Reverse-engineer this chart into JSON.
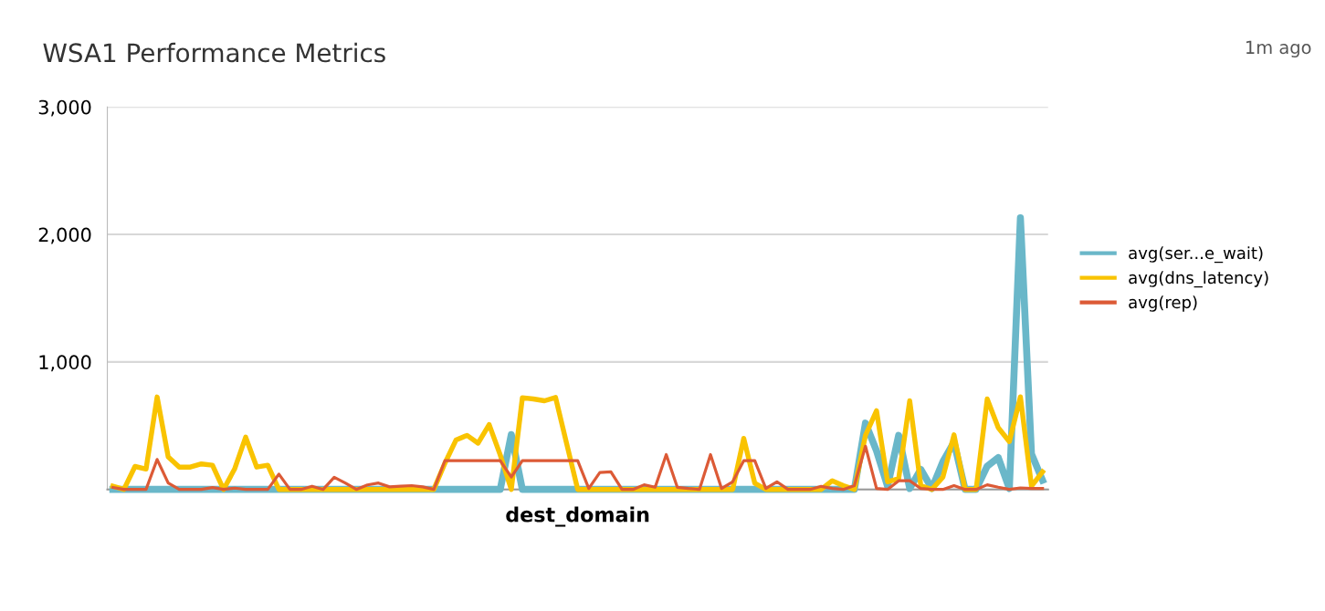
{
  "chart_data": {
    "type": "line",
    "title": "WSA1 Performance Metrics",
    "xlabel": "dest_domain",
    "annotations": [
      "1m ago"
    ],
    "categories": [
      null,
      null,
      null,
      null,
      null,
      null,
      null,
      null,
      null,
      null,
      null,
      null,
      null,
      null,
      null,
      null,
      null,
      null,
      null,
      null,
      null,
      null,
      null,
      null,
      null,
      null,
      null,
      null,
      null,
      null,
      null,
      null,
      null,
      null,
      null,
      null,
      null,
      null,
      null,
      null,
      null,
      null,
      null,
      null,
      null,
      null,
      null,
      null,
      null,
      null,
      null,
      null,
      null,
      null,
      null,
      null,
      null,
      null,
      null,
      null,
      null,
      null,
      null,
      null,
      null,
      null,
      null,
      null,
      null,
      null,
      null,
      null,
      null,
      null,
      null,
      null,
      null,
      null,
      null,
      null,
      null,
      null,
      null,
      null,
      null
    ],
    "series": [
      {
        "name": "avg(ser...e_wait)",
        "color": "#6ab7c9",
        "values": [
          0,
          0,
          0,
          0,
          0,
          0,
          0,
          0,
          0,
          0,
          0,
          0,
          0,
          0,
          0,
          0,
          0,
          0,
          0,
          0,
          0,
          0,
          0,
          0,
          0,
          0,
          0,
          0,
          0,
          0,
          0,
          0,
          0,
          0,
          0,
          0,
          430,
          0,
          0,
          0,
          0,
          0,
          0,
          0,
          0,
          0,
          0,
          0,
          0,
          0,
          0,
          0,
          0,
          0,
          0,
          0,
          0,
          0,
          0,
          0,
          0,
          0,
          0,
          0,
          0,
          0,
          0,
          0,
          520,
          303,
          24,
          424,
          7,
          157,
          7,
          218,
          370,
          0,
          0,
          182,
          250,
          7,
          2130,
          278,
          72
        ]
      },
      {
        "name": "avg(dns_latency)",
        "color": "#f9c300",
        "values": [
          25,
          0,
          180,
          160,
          725,
          255,
          175,
          175,
          200,
          190,
          0,
          160,
          410,
          175,
          190,
          0,
          0,
          0,
          0,
          0,
          0,
          0,
          0,
          0,
          0,
          0,
          0,
          0,
          0,
          0,
          205,
          387,
          424,
          363,
          508,
          270,
          0,
          719,
          709,
          695,
          721,
          360,
          0,
          0,
          0,
          0,
          0,
          0,
          0,
          0,
          0,
          0,
          0,
          0,
          0,
          0,
          0,
          400,
          48,
          0,
          0,
          0,
          0,
          0,
          0,
          68,
          30,
          0,
          424,
          617,
          60,
          85,
          695,
          30,
          0,
          97,
          428,
          0,
          0,
          709,
          484,
          375,
          726,
          25,
          138
        ]
      },
      {
        "name": "avg(rep)",
        "color": "#dc5a36",
        "values": [
          15,
          0,
          0,
          0,
          235,
          50,
          0,
          0,
          0,
          15,
          0,
          10,
          0,
          0,
          0,
          120,
          0,
          0,
          25,
          0,
          95,
          50,
          0,
          35,
          50,
          20,
          25,
          30,
          20,
          0,
          225,
          225,
          225,
          225,
          225,
          225,
          97,
          225,
          225,
          225,
          225,
          225,
          225,
          7,
          133,
          138,
          0,
          0,
          36,
          17,
          273,
          17,
          7,
          0,
          273,
          7,
          60,
          225,
          225,
          7,
          60,
          0,
          0,
          0,
          24,
          7,
          0,
          30,
          339,
          7,
          0,
          68,
          68,
          7,
          0,
          0,
          30,
          0,
          0,
          36,
          17,
          0,
          12,
          7,
          7
        ]
      }
    ],
    "ylim": [
      0,
      3000
    ],
    "yticks": [
      {
        "value": 0,
        "label": null
      },
      {
        "value": 1000,
        "label": "1,000"
      },
      {
        "value": 2000,
        "label": "2,000"
      },
      {
        "value": 3000,
        "label": "3,000"
      }
    ],
    "grid": "y",
    "legend": "right",
    "marker": "none",
    "line_style": "solid"
  }
}
